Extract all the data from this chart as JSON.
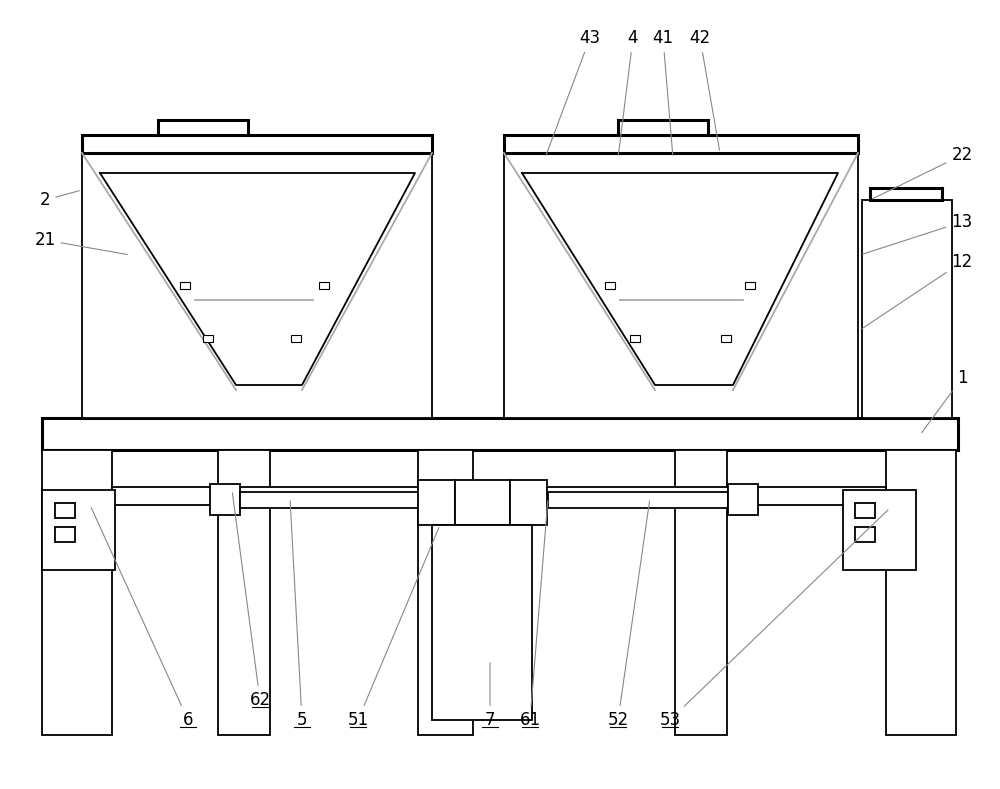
{
  "bg_color": "#ffffff",
  "lc": "#000000",
  "gray": "#aaaaaa",
  "lw": 1.3,
  "tlw": 2.2,
  "alw": 0.8,
  "fs": 12,
  "ac": "#888888"
}
